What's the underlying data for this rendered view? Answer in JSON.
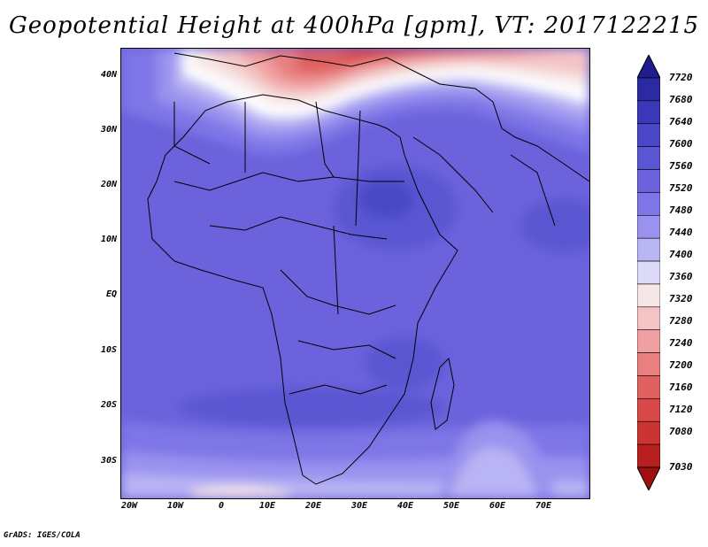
{
  "title": "Geopotential Height at 400hPa [gpm], VT: 2017122215",
  "credit": "GrADS: IGES/COLA",
  "axes": {
    "lat_labels": [
      "40N",
      "30N",
      "20N",
      "10N",
      "EQ",
      "10S",
      "20S",
      "30S"
    ],
    "lon_labels": [
      "20W",
      "10W",
      "0",
      "10E",
      "20E",
      "30E",
      "40E",
      "50E",
      "60E",
      "70E"
    ]
  },
  "colorbar": {
    "labels": [
      "7720",
      "7680",
      "7640",
      "7600",
      "7560",
      "7520",
      "7480",
      "7440",
      "7400",
      "7360",
      "7320",
      "7280",
      "7240",
      "7200",
      "7160",
      "7120",
      "7080",
      "7030"
    ],
    "colors": [
      "#1e1c8e",
      "#2b2aa0",
      "#3a38b8",
      "#4a48c8",
      "#5a56d2",
      "#6b62dc",
      "#7e76e6",
      "#9a92ee",
      "#b9b4f4",
      "#dcdaf8",
      "#f6e6e6",
      "#f4c4c4",
      "#f0a0a0",
      "#e88080",
      "#e06060",
      "#d84848",
      "#cc3434",
      "#b82020",
      "#a01010"
    ]
  }
}
